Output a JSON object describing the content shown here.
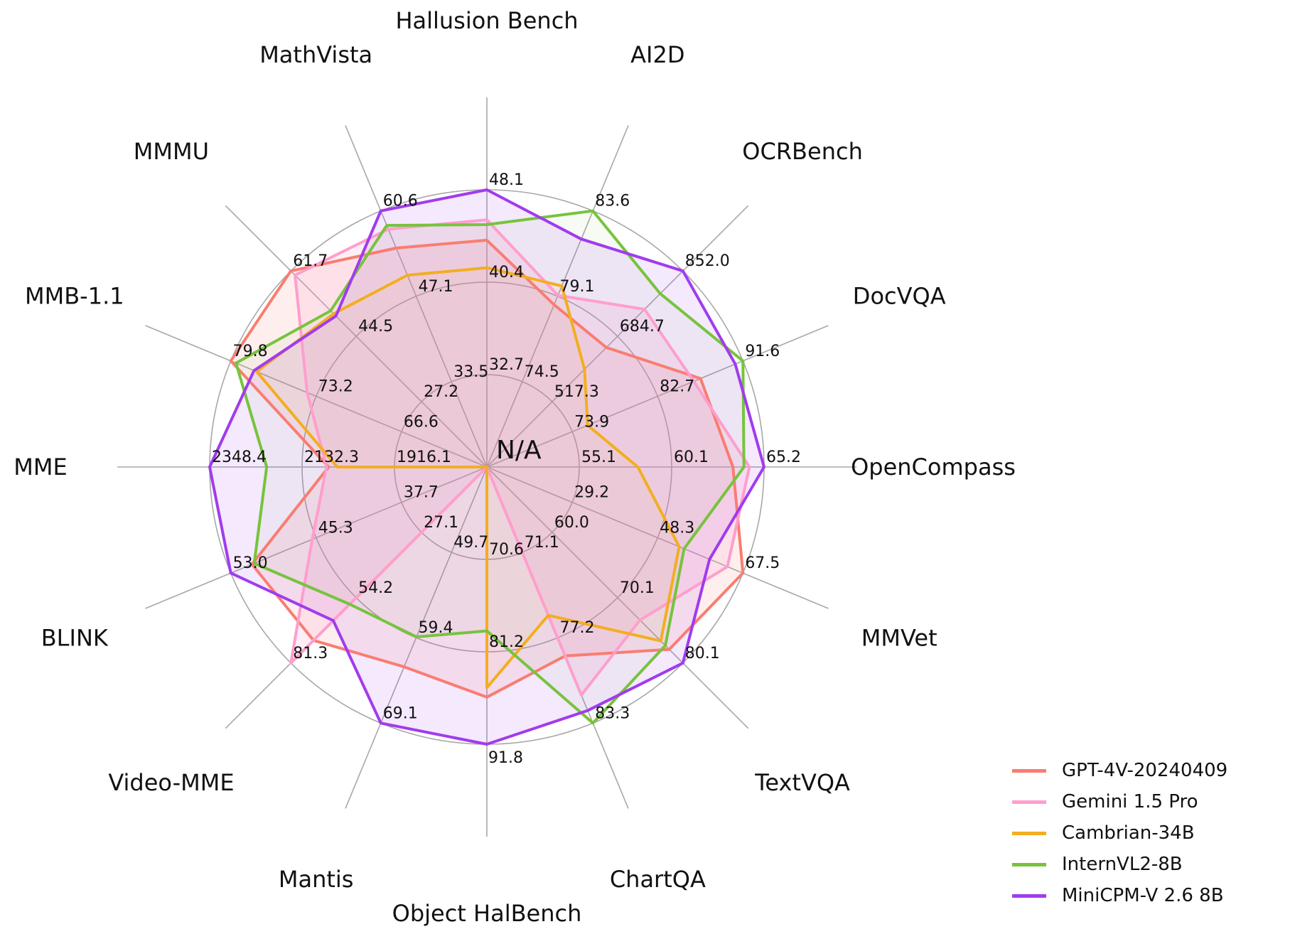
{
  "chart_data": {
    "type": "radar",
    "center_label": "N/A",
    "grid": {
      "rings_fraction": [
        0.3333,
        0.6667,
        1.0
      ],
      "grid_on": true,
      "spokes": 16
    },
    "legend_position": "bottom-right",
    "axes": [
      {
        "label": "OpenCompass",
        "angle_deg": 0,
        "ticks": [
          "55.1",
          "60.1",
          "65.2"
        ]
      },
      {
        "label": "DocVQA",
        "angle_deg": 22.5,
        "ticks": [
          "73.9",
          "82.7",
          "91.6"
        ]
      },
      {
        "label": "OCRBench",
        "angle_deg": 45,
        "ticks": [
          "517.3",
          "684.7",
          "852.0"
        ]
      },
      {
        "label": "AI2D",
        "angle_deg": 67.5,
        "ticks": [
          "74.5",
          "79.1",
          "83.6"
        ]
      },
      {
        "label": "Hallusion Bench",
        "angle_deg": 90,
        "ticks": [
          "32.7",
          "40.4",
          "48.1"
        ]
      },
      {
        "label": "MathVista",
        "angle_deg": 112.5,
        "ticks": [
          "33.5",
          "47.1",
          "60.6"
        ]
      },
      {
        "label": "MMMU",
        "angle_deg": 135,
        "ticks": [
          "27.2",
          "44.5",
          "61.7"
        ]
      },
      {
        "label": "MMB-1.1",
        "angle_deg": 157.5,
        "ticks": [
          "66.6",
          "73.2",
          "79.8"
        ]
      },
      {
        "label": "MME",
        "angle_deg": 180,
        "ticks": [
          "1916.1",
          "2132.3",
          "2348.4"
        ]
      },
      {
        "label": "BLINK",
        "angle_deg": 202.5,
        "ticks": [
          "37.7",
          "45.3",
          "53.0"
        ]
      },
      {
        "label": "Video-MME",
        "angle_deg": 225,
        "ticks": [
          "27.1",
          "54.2",
          "81.3"
        ]
      },
      {
        "label": "Mantis",
        "angle_deg": 247.5,
        "ticks": [
          "49.7",
          "59.4",
          "69.1"
        ]
      },
      {
        "label": "Object HalBench",
        "angle_deg": 270,
        "ticks": [
          "70.6",
          "81.2",
          "91.8"
        ]
      },
      {
        "label": "ChartQA",
        "angle_deg": 292.5,
        "ticks": [
          "71.1",
          "77.2",
          "83.3"
        ]
      },
      {
        "label": "TextVQA",
        "angle_deg": 315,
        "ticks": [
          "60.0",
          "70.1",
          "80.1"
        ]
      },
      {
        "label": "MMVet",
        "angle_deg": 337.5,
        "ticks": [
          "29.2",
          "48.3",
          "67.5"
        ]
      }
    ],
    "series": [
      {
        "name": "GPT-4V-20240409",
        "color": "#f97d71",
        "values": [
          63.5,
          87.2,
          656,
          78.6,
          43.9,
          54.7,
          61.7,
          79.8,
          2070.2,
          51.1,
          71.9,
          62.7,
          86.4,
          78.5,
          78.0,
          67.5
        ]
      },
      {
        "name": "Gemini 1.5 Pro",
        "color": "#ff9ecd",
        "values": [
          64.4,
          86.5,
          754,
          79.1,
          45.6,
          57.7,
          60.6,
          73.9,
          2075.0,
          45.7,
          81.3,
          null,
          null,
          81.3,
          73.5,
          64.0
        ]
      },
      {
        "name": "Cambrian-34B",
        "color": "#f2ae20",
        "values": [
          58.3,
          75.5,
          600,
          79.6,
          41.6,
          50.4,
          50.4,
          77.8,
          2049.9,
          null,
          null,
          null,
          85.3,
          75.6,
          76.7,
          53.2
        ]
      },
      {
        "name": "InternVL2-8B",
        "color": "#77c33d",
        "values": [
          64.1,
          91.6,
          794,
          83.6,
          45.2,
          58.3,
          51.2,
          79.4,
          2215.1,
          50.9,
          56.9,
          59.3,
          78.8,
          83.3,
          77.4,
          54.3
        ]
      },
      {
        "name": "MiniCPM-V 2.6 8B",
        "color": "#a13bee",
        "values": [
          65.2,
          90.8,
          852.0,
          82.1,
          48.1,
          60.6,
          49.8,
          78.0,
          2348.4,
          53.0,
          63.7,
          69.1,
          91.8,
          82.4,
          80.1,
          60.0
        ]
      }
    ]
  }
}
